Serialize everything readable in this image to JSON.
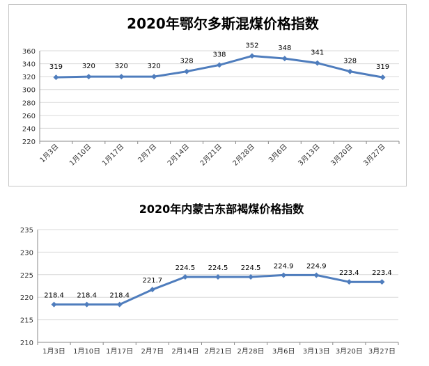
{
  "chart_data": [
    {
      "type": "line",
      "title": "2020年鄂尔多斯混煤价格指数",
      "xlabel": "",
      "ylabel": "",
      "categories": [
        "1月3日",
        "1月10日",
        "1月17日",
        "2月7日",
        "2月14日",
        "2月21日",
        "2月28日",
        "3月6日",
        "3月13日",
        "3月20日",
        "3月27日"
      ],
      "series": [
        {
          "values": [
            319,
            320,
            320,
            320,
            328,
            338,
            352,
            348,
            341,
            328,
            319
          ]
        }
      ],
      "data_labels": [
        "319",
        "320",
        "320",
        "320",
        "328",
        "338",
        "352",
        "348",
        "341",
        "328",
        "319"
      ],
      "ylim": [
        220,
        360
      ],
      "yticks": [
        "220",
        "240",
        "260",
        "280",
        "300",
        "320",
        "340",
        "360"
      ],
      "grid": true,
      "legend": "none",
      "x_label_rotation": "rotated",
      "colors": {
        "line": "#4f7dbd",
        "marker": "#4f7dbd",
        "grid": "#d9d9d9",
        "axis": "#888888"
      }
    },
    {
      "type": "line",
      "title": "2020年内蒙古东部褐煤价格指数",
      "xlabel": "",
      "ylabel": "",
      "categories": [
        "1月3日",
        "1月10日",
        "1月17日",
        "2月7日",
        "2月14日",
        "2月21日",
        "2月28日",
        "3月6日",
        "3月13日",
        "3月20日",
        "3月27日"
      ],
      "series": [
        {
          "values": [
            218.4,
            218.4,
            218.4,
            221.7,
            224.5,
            224.5,
            224.5,
            224.9,
            224.9,
            223.4,
            223.4
          ]
        }
      ],
      "data_labels": [
        "218.4",
        "218.4",
        "218.4",
        "221.7",
        "224.5",
        "224.5",
        "224.5",
        "224.9",
        "224.9",
        "223.4",
        "223.4"
      ],
      "ylim": [
        210,
        235
      ],
      "yticks": [
        "210",
        "215",
        "220",
        "225",
        "230",
        "235"
      ],
      "grid": true,
      "legend": "none",
      "x_label_rotation": "horizontal",
      "colors": {
        "line": "#4f7dbd",
        "marker": "#4f7dbd",
        "grid": "#d9d9d9",
        "axis": "#888888"
      }
    }
  ]
}
